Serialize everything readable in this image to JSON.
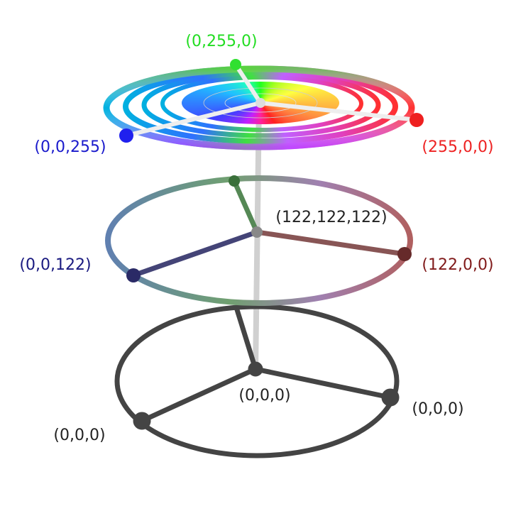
{
  "top_level": {
    "green_label": "(0,255,0)",
    "blue_label": "(0,0,255)",
    "red_label": "(255,0,0)"
  },
  "middle_level": {
    "center_label": "(122,122,122)",
    "blue_label": "(0,0,122)",
    "red_label": "(122,0,0)"
  },
  "bottom_level": {
    "center_label": "(0,0,0)",
    "right_label": "(0,0,0)",
    "left_label": "(0,0,0)"
  }
}
